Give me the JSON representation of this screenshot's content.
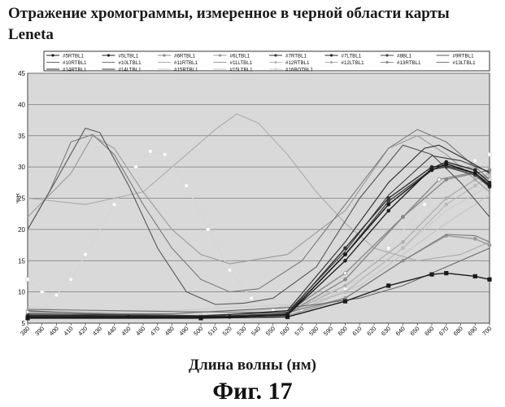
{
  "page": {
    "title": "Отражение хромограммы, измеренное в черной области карты Leneta",
    "x_caption": "Длина волны (нм)",
    "figure_label": "Фиг. 17"
  },
  "chart_data": {
    "type": "line",
    "title": "Отражение хромограммы, измеренное в черной области карты Leneta",
    "xlabel": "Длина волны (нм)",
    "ylabel": "%R",
    "xlim": [
      380,
      700
    ],
    "ylim": [
      5,
      45
    ],
    "x_ticks": [
      380,
      390,
      400,
      410,
      420,
      430,
      440,
      450,
      460,
      470,
      480,
      490,
      500,
      510,
      520,
      530,
      540,
      550,
      560,
      570,
      580,
      590,
      600,
      610,
      620,
      630,
      640,
      650,
      660,
      670,
      680,
      690,
      700
    ],
    "y_ticks": [
      5,
      10,
      15,
      20,
      25,
      30,
      35,
      40,
      45
    ],
    "grid": true,
    "legend_position": "top",
    "series": [
      {
        "name": "#5RTBL1",
        "color": "#1a1a1a",
        "marker": "diamond",
        "points": [
          [
            380,
            6
          ],
          [
            450,
            6
          ],
          [
            520,
            6
          ],
          [
            560,
            6.3
          ],
          [
            600,
            16
          ],
          [
            630,
            24
          ],
          [
            660,
            29.5
          ],
          [
            670,
            30.5
          ],
          [
            690,
            29
          ],
          [
            700,
            27
          ]
        ]
      },
      {
        "name": "#5LTBL1",
        "color": "#1a1a1a",
        "marker": "square",
        "points": [
          [
            380,
            5.8
          ],
          [
            500,
            5.8
          ],
          [
            560,
            6
          ],
          [
            600,
            8.5
          ],
          [
            630,
            11
          ],
          [
            660,
            12.8
          ],
          [
            670,
            13
          ],
          [
            690,
            12.5
          ],
          [
            700,
            12
          ]
        ]
      },
      {
        "name": "#6RTBL1",
        "color": "#888888",
        "marker": "triangle",
        "points": [
          [
            380,
            6
          ],
          [
            500,
            6
          ],
          [
            560,
            6.5
          ],
          [
            600,
            12
          ],
          [
            640,
            22
          ],
          [
            670,
            28
          ],
          [
            690,
            29
          ],
          [
            700,
            29.5
          ]
        ]
      },
      {
        "name": "#6LTBL1",
        "color": "#999999",
        "marker": "x",
        "points": [
          [
            380,
            6
          ],
          [
            500,
            6
          ],
          [
            560,
            6.2
          ],
          [
            600,
            9
          ],
          [
            640,
            15
          ],
          [
            670,
            19
          ],
          [
            690,
            18.5
          ],
          [
            700,
            17.5
          ]
        ]
      },
      {
        "name": "#7RTBL1",
        "color": "#333333",
        "marker": "star",
        "points": [
          [
            380,
            6.2
          ],
          [
            500,
            6
          ],
          [
            560,
            6.5
          ],
          [
            600,
            17
          ],
          [
            630,
            25
          ],
          [
            660,
            30
          ],
          [
            670,
            30.2
          ],
          [
            690,
            29
          ],
          [
            700,
            27.2
          ]
        ]
      },
      {
        "name": "#7LTBL1",
        "color": "#222222",
        "marker": "circle",
        "points": [
          [
            380,
            5.9
          ],
          [
            500,
            5.9
          ],
          [
            560,
            6.3
          ],
          [
            600,
            15
          ],
          [
            630,
            23
          ],
          [
            660,
            29.8
          ],
          [
            670,
            30.8
          ],
          [
            690,
            29.5
          ],
          [
            700,
            27.5
          ]
        ]
      },
      {
        "name": "#8BL1",
        "color": "#444444",
        "marker": "plus",
        "points": [
          [
            380,
            6
          ],
          [
            500,
            6
          ],
          [
            560,
            6.4
          ],
          [
            600,
            16
          ],
          [
            630,
            24.5
          ],
          [
            660,
            29.6
          ],
          [
            670,
            30
          ],
          [
            690,
            28.7
          ],
          [
            700,
            26.8
          ]
        ]
      },
      {
        "name": "#9RTBL1",
        "color": "#555555",
        "marker": "none",
        "points": [
          [
            380,
            20
          ],
          [
            400,
            28
          ],
          [
            420,
            36.2
          ],
          [
            430,
            35.5
          ],
          [
            450,
            27
          ],
          [
            470,
            17
          ],
          [
            490,
            10
          ],
          [
            510,
            8
          ],
          [
            530,
            8.2
          ],
          [
            550,
            9
          ],
          [
            580,
            14
          ],
          [
            610,
            25
          ],
          [
            640,
            33.5
          ],
          [
            660,
            32
          ],
          [
            680,
            27.5
          ],
          [
            700,
            22
          ]
        ]
      },
      {
        "name": "#10RTBL1",
        "color": "#6a6a6a",
        "marker": "none",
        "points": [
          [
            380,
            7
          ],
          [
            420,
            6.5
          ],
          [
            480,
            6.5
          ],
          [
            520,
            7
          ],
          [
            560,
            7.5
          ],
          [
            580,
            8
          ],
          [
            610,
            9
          ],
          [
            640,
            11
          ],
          [
            670,
            14
          ],
          [
            700,
            17
          ]
        ]
      },
      {
        "name": "#10LTBL1",
        "color": "#777777",
        "marker": "none",
        "points": [
          [
            380,
            7.2
          ],
          [
            500,
            6.8
          ],
          [
            560,
            6.7
          ],
          [
            600,
            9
          ],
          [
            640,
            15
          ],
          [
            670,
            19.2
          ],
          [
            690,
            19
          ],
          [
            700,
            18
          ]
        ]
      },
      {
        "name": "#11RTBL1",
        "color": "#aaaaaa",
        "marker": "none",
        "points": [
          [
            380,
            25
          ],
          [
            420,
            24
          ],
          [
            460,
            26
          ],
          [
            490,
            32
          ],
          [
            510,
            36
          ],
          [
            525,
            38.5
          ],
          [
            540,
            37
          ],
          [
            560,
            32
          ],
          [
            580,
            26
          ],
          [
            600,
            21
          ],
          [
            620,
            17
          ],
          [
            650,
            15
          ],
          [
            680,
            16
          ],
          [
            700,
            18
          ]
        ]
      },
      {
        "name": "#11LTBL1",
        "color": "#9a9a9a",
        "marker": "none",
        "points": [
          [
            380,
            22
          ],
          [
            410,
            29
          ],
          [
            425,
            35
          ],
          [
            440,
            33
          ],
          [
            460,
            26
          ],
          [
            480,
            20
          ],
          [
            500,
            16
          ],
          [
            520,
            14.5
          ],
          [
            560,
            16
          ],
          [
            600,
            23
          ],
          [
            630,
            33
          ],
          [
            650,
            35
          ],
          [
            670,
            32
          ],
          [
            700,
            26
          ]
        ]
      },
      {
        "name": "#12RTBL1",
        "color": "#bbbbbb",
        "marker": "dot",
        "points": [
          [
            380,
            7
          ],
          [
            500,
            6
          ],
          [
            560,
            6.5
          ],
          [
            600,
            10
          ],
          [
            640,
            17
          ],
          [
            670,
            24
          ],
          [
            690,
            27
          ],
          [
            700,
            28.5
          ]
        ]
      },
      {
        "name": "#12LTBL1",
        "color": "#b0b0b0",
        "marker": "x",
        "points": [
          [
            380,
            6.5
          ],
          [
            500,
            6
          ],
          [
            560,
            6.5
          ],
          [
            600,
            11
          ],
          [
            640,
            18
          ],
          [
            670,
            25
          ],
          [
            690,
            28
          ],
          [
            700,
            29
          ]
        ]
      },
      {
        "name": "#13RTBL1",
        "color": "#8a8a8a",
        "marker": "diamond-open",
        "points": [
          [
            380,
            6.8
          ],
          [
            500,
            6.2
          ],
          [
            560,
            6.8
          ],
          [
            600,
            13
          ],
          [
            640,
            22
          ],
          [
            665,
            28
          ],
          [
            690,
            29.2
          ],
          [
            700,
            28
          ]
        ]
      },
      {
        "name": "#13LTBL1",
        "color": "#7a7a7a",
        "marker": "none",
        "points": [
          [
            380,
            20
          ],
          [
            395,
            26
          ],
          [
            410,
            34
          ],
          [
            425,
            35.2
          ],
          [
            440,
            32
          ],
          [
            460,
            24
          ],
          [
            480,
            17
          ],
          [
            500,
            12
          ],
          [
            520,
            10
          ],
          [
            540,
            10.5
          ],
          [
            570,
            15
          ],
          [
            600,
            24
          ],
          [
            630,
            33
          ],
          [
            650,
            36
          ],
          [
            670,
            34
          ],
          [
            700,
            28
          ]
        ]
      },
      {
        "name": "#14RTBL1",
        "color": "#2a2a2a",
        "marker": "none",
        "points": [
          [
            380,
            6.3
          ],
          [
            500,
            6.1
          ],
          [
            560,
            7
          ],
          [
            600,
            18
          ],
          [
            630,
            27.5
          ],
          [
            655,
            33
          ],
          [
            665,
            33.5
          ],
          [
            685,
            31
          ],
          [
            700,
            29
          ]
        ]
      },
      {
        "name": "#14LTBL1",
        "color": "#3a3a3a",
        "marker": "none",
        "points": [
          [
            380,
            6.5
          ],
          [
            500,
            6.2
          ],
          [
            560,
            6.8
          ],
          [
            600,
            16.5
          ],
          [
            630,
            25.5
          ],
          [
            660,
            31.8
          ],
          [
            680,
            31
          ],
          [
            700,
            29.2
          ]
        ]
      },
      {
        "name": "#15RTBL1",
        "color": "#cccccc",
        "marker": "none",
        "points": [
          [
            380,
            7.5
          ],
          [
            420,
            7
          ],
          [
            480,
            7
          ],
          [
            520,
            7.5
          ],
          [
            560,
            8
          ],
          [
            580,
            9
          ],
          [
            610,
            12
          ],
          [
            640,
            17
          ],
          [
            670,
            23
          ],
          [
            700,
            27
          ]
        ]
      },
      {
        "name": "#15LTBL1",
        "color": "#c4c4c4",
        "marker": "none",
        "points": [
          [
            380,
            7
          ],
          [
            420,
            6.8
          ],
          [
            480,
            6.8
          ],
          [
            540,
            7
          ],
          [
            580,
            8.5
          ],
          [
            610,
            11
          ],
          [
            640,
            16
          ],
          [
            670,
            21
          ],
          [
            700,
            25.5
          ]
        ]
      },
      {
        "name": "#16BOTBL1",
        "color": "#d6d6d6",
        "marker": "square-open",
        "points": [
          [
            380,
            12
          ],
          [
            390,
            10
          ],
          [
            400,
            9.5
          ],
          [
            410,
            12
          ],
          [
            420,
            16
          ],
          [
            440,
            24
          ],
          [
            455,
            30
          ],
          [
            465,
            32.5
          ],
          [
            475,
            32
          ],
          [
            490,
            27
          ],
          [
            505,
            20
          ],
          [
            520,
            13.5
          ],
          [
            535,
            9
          ],
          [
            550,
            7.2
          ],
          [
            570,
            7
          ],
          [
            600,
            10.5
          ],
          [
            630,
            17
          ],
          [
            655,
            24
          ],
          [
            670,
            28
          ],
          [
            690,
            31
          ],
          [
            700,
            32
          ]
        ]
      }
    ]
  }
}
